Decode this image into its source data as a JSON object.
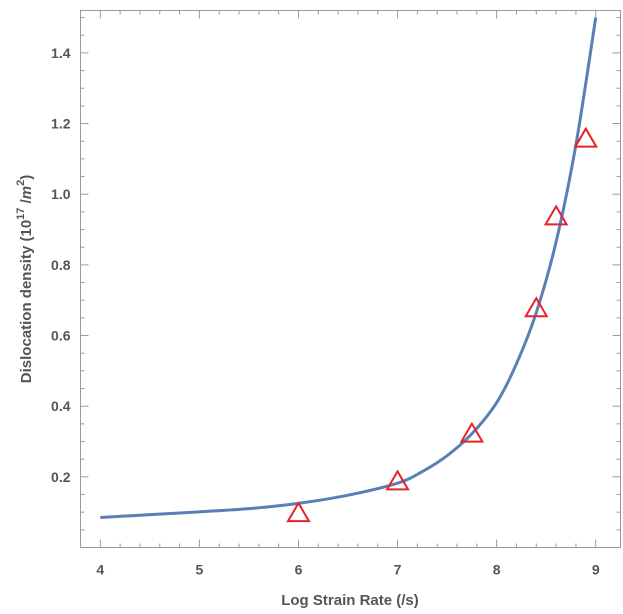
{
  "chart_data": {
    "type": "scatter",
    "xlabel": "Log Strain Rate (/s)",
    "ylabel": {
      "prefix": "Dislocation density (10",
      "exp1": "17",
      "mid": " /",
      "unit": "m",
      "exp2": "2",
      "suffix": ")"
    },
    "xlim": [
      3.8,
      9.25
    ],
    "ylim": [
      0.0,
      1.52
    ],
    "x_ticks": [
      4,
      5,
      6,
      7,
      8,
      9
    ],
    "x_tick_labels": [
      "4",
      "5",
      "6",
      "7",
      "8",
      "9"
    ],
    "y_ticks": [
      0.2,
      0.4,
      0.6,
      0.8,
      1.0,
      1.2,
      1.4
    ],
    "y_tick_labels": [
      "0.2",
      "0.4",
      "0.6",
      "0.8",
      "1.0",
      "1.2",
      "1.4"
    ],
    "grid": false,
    "series": [
      {
        "type": "line",
        "color": "#5b7fb5",
        "x": [
          4.0,
          4.5,
          5.0,
          5.5,
          6.0,
          6.5,
          7.0,
          7.25,
          7.5,
          7.75,
          8.0,
          8.2,
          8.4,
          8.6,
          8.8,
          9.0
        ],
        "y": [
          0.085,
          0.093,
          0.101,
          0.11,
          0.125,
          0.148,
          0.182,
          0.215,
          0.26,
          0.322,
          0.41,
          0.52,
          0.665,
          0.865,
          1.14,
          1.5
        ]
      },
      {
        "type": "scatter",
        "marker": "triangle-open",
        "color": "#e3242b",
        "x": [
          6.0,
          7.0,
          7.75,
          8.4,
          8.6,
          8.9
        ],
        "y": [
          0.1,
          0.19,
          0.325,
          0.68,
          0.94,
          1.16
        ]
      }
    ]
  }
}
